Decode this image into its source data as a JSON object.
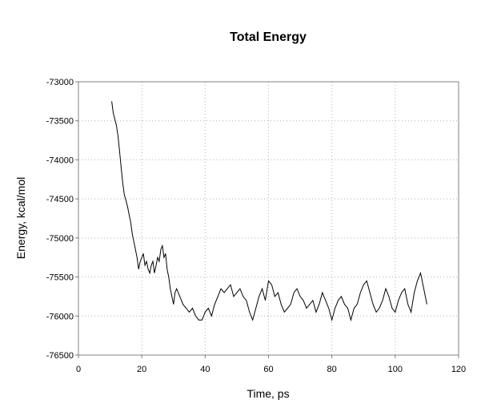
{
  "chart_data": {
    "type": "line",
    "title": "Total Energy",
    "xlabel": "Time, ps",
    "ylabel": "Energy, kcal/mol",
    "xlim": [
      0,
      120
    ],
    "ylim": [
      -76500,
      -73000
    ],
    "xticks": [
      0,
      20,
      40,
      60,
      80,
      100,
      120
    ],
    "yticks": [
      -73000,
      -73500,
      -74000,
      -74500,
      -75000,
      -75500,
      -76000,
      -76500
    ],
    "grid": true,
    "legend": "none",
    "series": [
      {
        "color": "#000000",
        "x": [
          10.5,
          11,
          11.5,
          12,
          12.5,
          13,
          13.5,
          14,
          14.5,
          15,
          15.5,
          16,
          16.5,
          17,
          17.5,
          18,
          18.5,
          19,
          19.5,
          20,
          20.5,
          21,
          21.5,
          22,
          22.5,
          23,
          23.5,
          24,
          24.5,
          25,
          25.5,
          26,
          26.5,
          27,
          27.5,
          28,
          28.5,
          29,
          29.5,
          30,
          30.5,
          31,
          32,
          33,
          34,
          35,
          36,
          37,
          38,
          39,
          40,
          41,
          42,
          43,
          44,
          45,
          46,
          47,
          48,
          49,
          50,
          51,
          52,
          53,
          54,
          55,
          56,
          57,
          58,
          59,
          60,
          61,
          62,
          63,
          64,
          65,
          66,
          67,
          68,
          69,
          70,
          71,
          72,
          73,
          74,
          75,
          76,
          77,
          78,
          79,
          80,
          81,
          82,
          83,
          84,
          85,
          86,
          87,
          88,
          89,
          90,
          91,
          92,
          93,
          94,
          95,
          96,
          97,
          98,
          99,
          100,
          101,
          102,
          103,
          104,
          105,
          106,
          107,
          108,
          109,
          110
        ],
        "y": [
          -73250,
          -73400,
          -73480,
          -73560,
          -73700,
          -73900,
          -74100,
          -74300,
          -74450,
          -74520,
          -74600,
          -74700,
          -74800,
          -74950,
          -75050,
          -75150,
          -75250,
          -75400,
          -75300,
          -75250,
          -75200,
          -75350,
          -75300,
          -75400,
          -75450,
          -75350,
          -75300,
          -75450,
          -75350,
          -75250,
          -75300,
          -75150,
          -75100,
          -75250,
          -75200,
          -75400,
          -75500,
          -75650,
          -75750,
          -75850,
          -75700,
          -75650,
          -75750,
          -75850,
          -75900,
          -75950,
          -75900,
          -76000,
          -76050,
          -76050,
          -75950,
          -75900,
          -76000,
          -75850,
          -75750,
          -75650,
          -75700,
          -75650,
          -75600,
          -75750,
          -75700,
          -75650,
          -75750,
          -75800,
          -75950,
          -76050,
          -75900,
          -75750,
          -75650,
          -75800,
          -75550,
          -75600,
          -75750,
          -75700,
          -75850,
          -75950,
          -75900,
          -75850,
          -75700,
          -75650,
          -75750,
          -75800,
          -75900,
          -75850,
          -75800,
          -75950,
          -75850,
          -75700,
          -75800,
          -75900,
          -76050,
          -75900,
          -75800,
          -75750,
          -75850,
          -75900,
          -76050,
          -75900,
          -75850,
          -75700,
          -75600,
          -75550,
          -75700,
          -75850,
          -75950,
          -75900,
          -75800,
          -75650,
          -75750,
          -75900,
          -75950,
          -75800,
          -75700,
          -75650,
          -75850,
          -75950,
          -75700,
          -75550,
          -75450,
          -75650,
          -75850
        ]
      }
    ]
  }
}
